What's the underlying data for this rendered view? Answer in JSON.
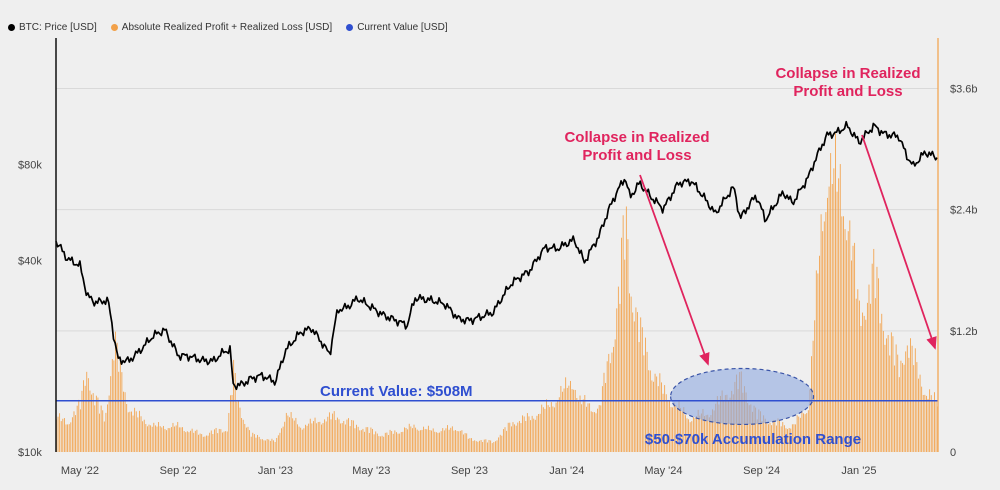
{
  "legend": {
    "price_label": "BTC: Price [USD]",
    "realized_label": "Absolute Realized Profit + Realized Loss [USD]",
    "current_label": "Current Value [USD]"
  },
  "colors": {
    "price": "#000000",
    "realized": "#f2a149",
    "current": "#2f4fd0",
    "annotation": "#e0245e",
    "accum_text": "#2f4fd0",
    "ellipse_fill": "#8ea8e0"
  },
  "annotations": {
    "current_value": "Current Value: $508M",
    "collapse_1_line1": "Collapse in Realized",
    "collapse_1_line2": "Profit and Loss",
    "collapse_2_line1": "Collapse in Realized",
    "collapse_2_line2": "Profit and Loss",
    "accumulation": "$50-$70k Accumulation Range"
  },
  "chart_data": {
    "type": "line",
    "x_ticks": [
      "May '22",
      "Sep '22",
      "Jan '23",
      "May '23",
      "Sep '23",
      "Jan '24",
      "May '24",
      "Sep '24",
      "Jan '25"
    ],
    "x_tick_dates": [
      "2022-05-01",
      "2022-09-01",
      "2023-01-01",
      "2023-05-01",
      "2023-09-01",
      "2024-01-01",
      "2024-05-01",
      "2024-09-01",
      "2025-01-01"
    ],
    "x_range": [
      "2022-04-01",
      "2025-04-10"
    ],
    "y_left": {
      "scale": "log",
      "ticks": [
        "$10k",
        "$40k",
        "$80k"
      ],
      "tick_values": [
        10000,
        40000,
        80000
      ],
      "range": [
        10000,
        200000
      ]
    },
    "y_right": {
      "scale": "linear",
      "ticks": [
        "0",
        "$1.2b",
        "$2.4b",
        "$3.6b"
      ],
      "tick_values": [
        0,
        1.2,
        2.4,
        3.6
      ],
      "unit": "billion USD",
      "range": [
        0,
        4.1
      ]
    },
    "current_value_billion": 0.508,
    "series": [
      {
        "name": "BTC: Price [USD]",
        "axis": "left",
        "points": [
          [
            "2022-04-01",
            46000
          ],
          [
            "2022-04-15",
            40500
          ],
          [
            "2022-05-01",
            38500
          ],
          [
            "2022-05-10",
            31000
          ],
          [
            "2022-05-20",
            29500
          ],
          [
            "2022-06-05",
            30000
          ],
          [
            "2022-06-13",
            22500
          ],
          [
            "2022-06-18",
            19500
          ],
          [
            "2022-07-01",
            19300
          ],
          [
            "2022-07-15",
            20800
          ],
          [
            "2022-08-01",
            23200
          ],
          [
            "2022-08-15",
            24200
          ],
          [
            "2022-09-01",
            20100
          ],
          [
            "2022-09-15",
            20000
          ],
          [
            "2022-10-01",
            19400
          ],
          [
            "2022-10-15",
            19300
          ],
          [
            "2022-10-29",
            20700
          ],
          [
            "2022-11-05",
            21000
          ],
          [
            "2022-11-09",
            16200
          ],
          [
            "2022-11-20",
            16300
          ],
          [
            "2022-12-01",
            17000
          ],
          [
            "2022-12-15",
            17400
          ],
          [
            "2023-01-01",
            16600
          ],
          [
            "2023-01-14",
            20900
          ],
          [
            "2023-02-01",
            23700
          ],
          [
            "2023-02-15",
            24500
          ],
          [
            "2023-03-10",
            20200
          ],
          [
            "2023-03-20",
            28000
          ],
          [
            "2023-04-01",
            28500
          ],
          [
            "2023-04-14",
            30400
          ],
          [
            "2023-05-01",
            28500
          ],
          [
            "2023-05-15",
            27000
          ],
          [
            "2023-06-15",
            25000
          ],
          [
            "2023-06-25",
            30500
          ],
          [
            "2023-07-15",
            30000
          ],
          [
            "2023-08-01",
            29200
          ],
          [
            "2023-08-18",
            26200
          ],
          [
            "2023-09-01",
            25900
          ],
          [
            "2023-09-15",
            26600
          ],
          [
            "2023-10-01",
            27500
          ],
          [
            "2023-10-24",
            34000
          ],
          [
            "2023-11-15",
            37000
          ],
          [
            "2023-12-05",
            44000
          ],
          [
            "2023-12-20",
            43500
          ],
          [
            "2024-01-10",
            46500
          ],
          [
            "2024-01-23",
            39500
          ],
          [
            "2024-02-10",
            47500
          ],
          [
            "2024-02-28",
            62000
          ],
          [
            "2024-03-14",
            73000
          ],
          [
            "2024-03-20",
            63000
          ],
          [
            "2024-04-01",
            70000
          ],
          [
            "2024-04-15",
            63500
          ],
          [
            "2024-05-01",
            58000
          ],
          [
            "2024-05-20",
            70000
          ],
          [
            "2024-06-05",
            71000
          ],
          [
            "2024-06-25",
            61000
          ],
          [
            "2024-07-05",
            56000
          ],
          [
            "2024-07-28",
            68000
          ],
          [
            "2024-08-05",
            54000
          ],
          [
            "2024-08-25",
            64000
          ],
          [
            "2024-09-06",
            53500
          ],
          [
            "2024-09-28",
            65500
          ],
          [
            "2024-10-10",
            60500
          ],
          [
            "2024-10-29",
            72500
          ],
          [
            "2024-11-12",
            88000
          ],
          [
            "2024-11-22",
            99000
          ],
          [
            "2024-12-05",
            101000
          ],
          [
            "2024-12-17",
            106000
          ],
          [
            "2025-01-01",
            94000
          ],
          [
            "2025-01-20",
            106000
          ],
          [
            "2025-02-01",
            100000
          ],
          [
            "2025-02-20",
            98000
          ],
          [
            "2025-03-01",
            86000
          ],
          [
            "2025-03-10",
            79000
          ],
          [
            "2025-03-25",
            87500
          ],
          [
            "2025-04-10",
            84000
          ]
        ]
      },
      {
        "name": "Absolute Realized Profit + Realized Loss [USD]",
        "axis": "right",
        "unit": "billion USD",
        "points": [
          [
            "2022-04-01",
            0.4
          ],
          [
            "2022-04-15",
            0.35
          ],
          [
            "2022-05-01",
            0.55
          ],
          [
            "2022-05-10",
            1.05
          ],
          [
            "2022-05-15",
            0.7
          ],
          [
            "2022-06-01",
            0.4
          ],
          [
            "2022-06-13",
            1.3
          ],
          [
            "2022-06-18",
            1.05
          ],
          [
            "2022-07-01",
            0.5
          ],
          [
            "2022-08-01",
            0.3
          ],
          [
            "2022-09-01",
            0.3
          ],
          [
            "2022-10-01",
            0.2
          ],
          [
            "2022-11-01",
            0.28
          ],
          [
            "2022-11-09",
            0.95
          ],
          [
            "2022-11-15",
            0.55
          ],
          [
            "2022-12-01",
            0.2
          ],
          [
            "2023-01-01",
            0.12
          ],
          [
            "2023-01-14",
            0.45
          ],
          [
            "2023-02-01",
            0.3
          ],
          [
            "2023-03-15",
            0.42
          ],
          [
            "2023-04-15",
            0.3
          ],
          [
            "2023-05-15",
            0.2
          ],
          [
            "2023-06-25",
            0.3
          ],
          [
            "2023-07-15",
            0.25
          ],
          [
            "2023-08-18",
            0.28
          ],
          [
            "2023-09-01",
            0.15
          ],
          [
            "2023-10-01",
            0.12
          ],
          [
            "2023-10-24",
            0.35
          ],
          [
            "2023-11-15",
            0.4
          ],
          [
            "2023-12-10",
            0.55
          ],
          [
            "2024-01-10",
            0.85
          ],
          [
            "2024-01-15",
            0.6
          ],
          [
            "2024-02-10",
            0.5
          ],
          [
            "2024-02-28",
            1.4
          ],
          [
            "2024-03-05",
            1.8
          ],
          [
            "2024-03-14",
            2.75
          ],
          [
            "2024-03-20",
            2.05
          ],
          [
            "2024-04-01",
            1.4
          ],
          [
            "2024-04-15",
            1.0
          ],
          [
            "2024-05-01",
            0.7
          ],
          [
            "2024-06-01",
            0.4
          ],
          [
            "2024-06-25",
            0.45
          ],
          [
            "2024-07-05",
            0.55
          ],
          [
            "2024-08-05",
            0.85
          ],
          [
            "2024-08-25",
            0.45
          ],
          [
            "2024-09-15",
            0.35
          ],
          [
            "2024-10-10",
            0.3
          ],
          [
            "2024-10-29",
            0.55
          ],
          [
            "2024-11-12",
            2.3
          ],
          [
            "2024-11-22",
            3.4
          ],
          [
            "2024-12-05",
            3.1
          ],
          [
            "2024-12-17",
            2.85
          ],
          [
            "2025-01-01",
            1.6
          ],
          [
            "2025-01-20",
            2.1
          ],
          [
            "2025-02-01",
            1.5
          ],
          [
            "2025-02-20",
            1.0
          ],
          [
            "2025-03-01",
            1.3
          ],
          [
            "2025-03-10",
            1.1
          ],
          [
            "2025-03-25",
            0.7
          ],
          [
            "2025-04-10",
            0.55
          ]
        ]
      },
      {
        "name": "Current Value [USD]",
        "axis": "right",
        "unit": "billion USD",
        "points": [
          [
            "2022-04-01",
            0.508
          ],
          [
            "2025-04-10",
            0.508
          ]
        ]
      }
    ]
  }
}
